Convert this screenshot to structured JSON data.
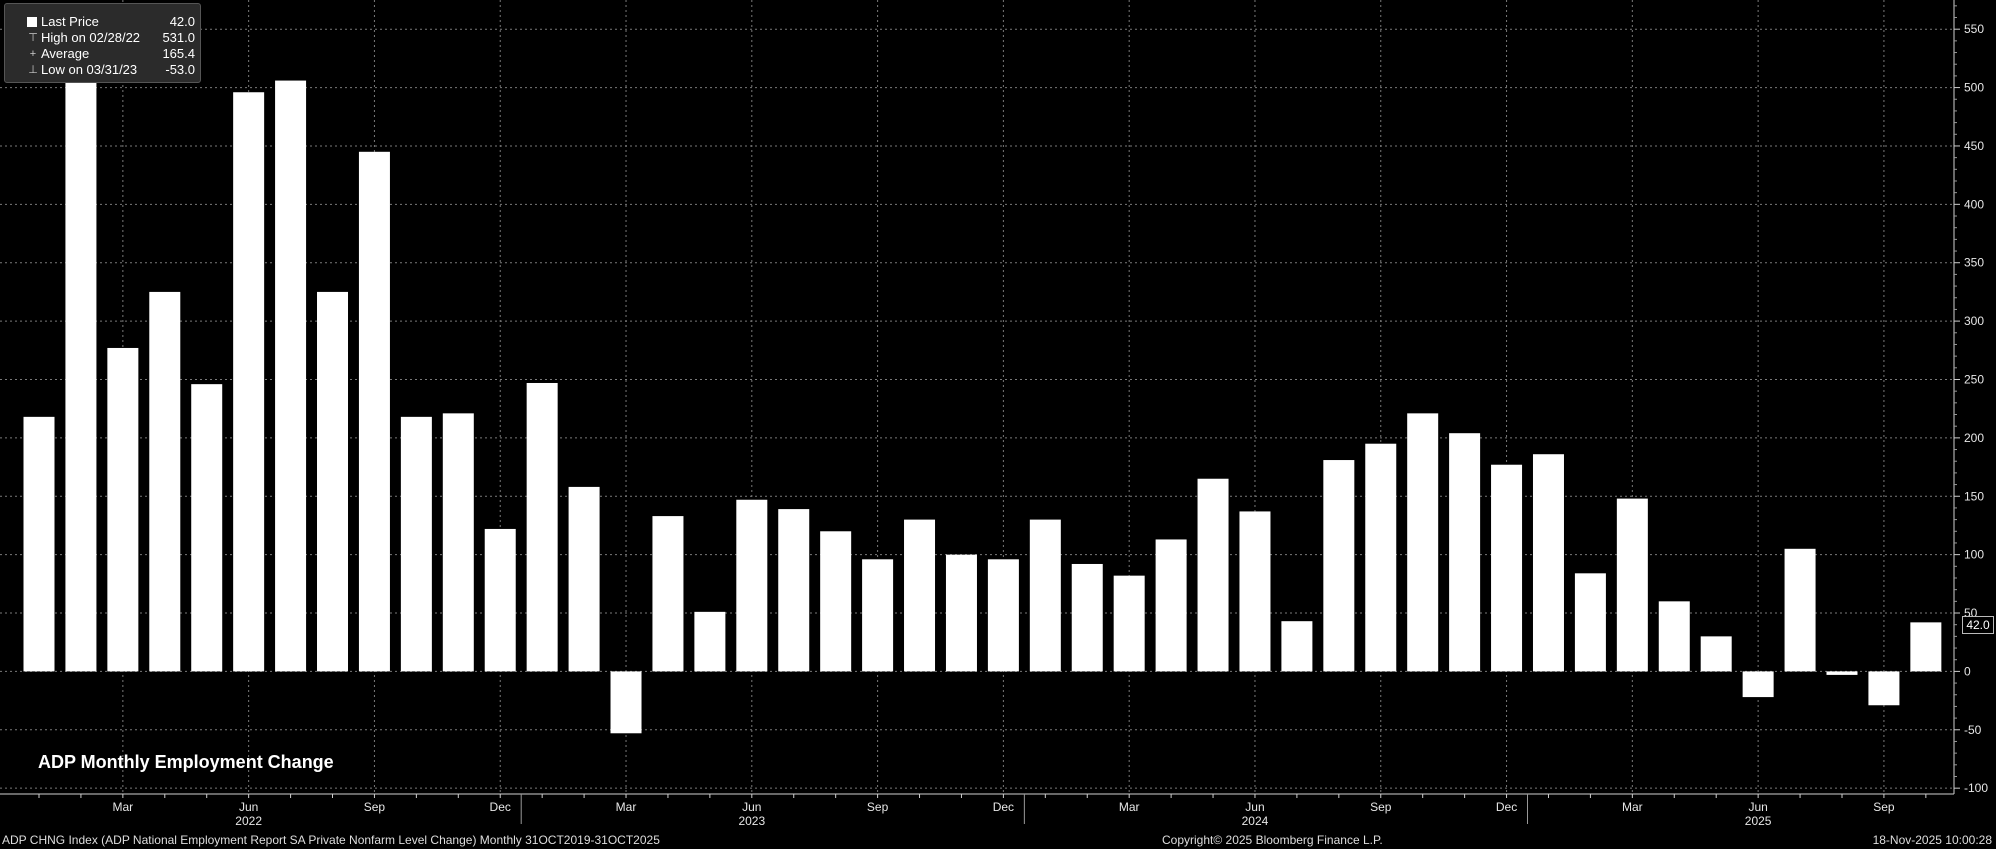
{
  "legend": {
    "rows": [
      {
        "label": "Last Price",
        "value": "42.0",
        "icon": "square"
      },
      {
        "label": "High on 02/28/22",
        "value": "531.0",
        "icon": "high-marker"
      },
      {
        "label": "Average",
        "value": "165.4",
        "icon": "average-marker"
      },
      {
        "label": "Low on 03/31/23",
        "value": "-53.0",
        "icon": "low-marker"
      }
    ]
  },
  "chart_data": {
    "type": "bar",
    "title": "ADP Monthly Employment Change",
    "x": [
      "Jan 2022",
      "Feb 2022",
      "Mar 2022",
      "Apr 2022",
      "May 2022",
      "Jun 2022",
      "Jul 2022",
      "Aug 2022",
      "Sep 2022",
      "Oct 2022",
      "Nov 2022",
      "Dec 2022",
      "Jan 2023",
      "Feb 2023",
      "Mar 2023",
      "Apr 2023",
      "May 2023",
      "Jun 2023",
      "Jul 2023",
      "Aug 2023",
      "Sep 2023",
      "Oct 2023",
      "Nov 2023",
      "Dec 2023",
      "Jan 2024",
      "Feb 2024",
      "Mar 2024",
      "Apr 2024",
      "May 2024",
      "Jun 2024",
      "Jul 2024",
      "Aug 2024",
      "Sep 2024",
      "Oct 2024",
      "Nov 2024",
      "Dec 2024",
      "Jan 2025",
      "Feb 2025",
      "Mar 2025",
      "Apr 2025",
      "May 2025",
      "Jun 2025",
      "Jul 2025",
      "Aug 2025",
      "Sep 2025",
      "Oct 2025"
    ],
    "values": [
      218,
      531,
      277,
      325,
      246,
      496,
      506,
      325,
      445,
      218,
      221,
      122,
      247,
      158,
      -53,
      133,
      51,
      147,
      139,
      120,
      96,
      130,
      100,
      96,
      130,
      92,
      82,
      113,
      165,
      137,
      43,
      181,
      195,
      221,
      204,
      177,
      186,
      84,
      148,
      60,
      30,
      -22,
      105,
      -3,
      -29,
      42
    ],
    "ylim": [
      -105,
      575
    ],
    "yticks": [
      -100,
      -50,
      0,
      50,
      100,
      150,
      200,
      250,
      300,
      350,
      400,
      450,
      500,
      550
    ],
    "xticks": [
      {
        "label": "Mar",
        "index": 2
      },
      {
        "label": "Jun",
        "index": 5
      },
      {
        "label": "Sep",
        "index": 8
      },
      {
        "label": "Dec",
        "index": 11
      },
      {
        "label": "Mar",
        "index": 14
      },
      {
        "label": "Jun",
        "index": 17
      },
      {
        "label": "Sep",
        "index": 20
      },
      {
        "label": "Dec",
        "index": 23
      },
      {
        "label": "Mar",
        "index": 26
      },
      {
        "label": "Jun",
        "index": 29
      },
      {
        "label": "Sep",
        "index": 32
      },
      {
        "label": "Dec",
        "index": 35
      },
      {
        "label": "Mar",
        "index": 38
      },
      {
        "label": "Jun",
        "index": 41
      },
      {
        "label": "Sep",
        "index": 44
      }
    ],
    "year_labels": [
      {
        "label": "2022",
        "index": 5
      },
      {
        "label": "2023",
        "index": 17
      },
      {
        "label": "2024",
        "index": 29
      },
      {
        "label": "2025",
        "index": 41
      }
    ],
    "last_value_label": "42.0",
    "grid": true,
    "bar_color": "#ffffff",
    "background": "#000000"
  },
  "footer": {
    "left": "ADP CHNG Index (ADP National Employment Report SA Private Nonfarm Level Change) Monthly 31OCT2019-31OCT2025",
    "center": "Copyright© 2025 Bloomberg Finance L.P.",
    "right": "18-Nov-2025 10:00:28"
  }
}
